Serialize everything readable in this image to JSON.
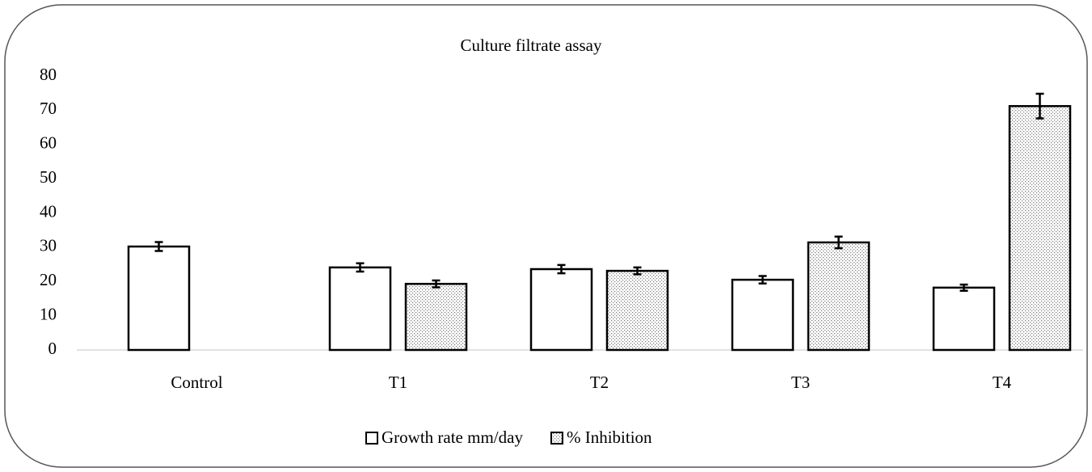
{
  "chart_data": {
    "type": "bar",
    "title": "Culture filtrate assay",
    "categories": [
      "Control",
      "T1",
      "T2",
      "T3",
      "T4"
    ],
    "series": [
      {
        "name": "Growth rate mm/day",
        "color": "#ffffff",
        "pattern": "solid",
        "values": [
          30.2,
          24.1,
          23.6,
          20.5,
          18.2
        ],
        "errors": [
          1.3,
          1.2,
          1.2,
          1.1,
          0.9
        ]
      },
      {
        "name": "% Inhibition",
        "color": "#ffffff",
        "pattern": "dotted",
        "values": [
          null,
          19.3,
          23.1,
          31.4,
          71.2
        ],
        "errors": [
          null,
          1.0,
          1.0,
          1.7,
          3.6
        ]
      }
    ],
    "ylim": [
      0,
      80
    ],
    "yticks": [
      0,
      10,
      20,
      30,
      40,
      50,
      60,
      70,
      80
    ],
    "grid": false,
    "legend": "bottom"
  }
}
